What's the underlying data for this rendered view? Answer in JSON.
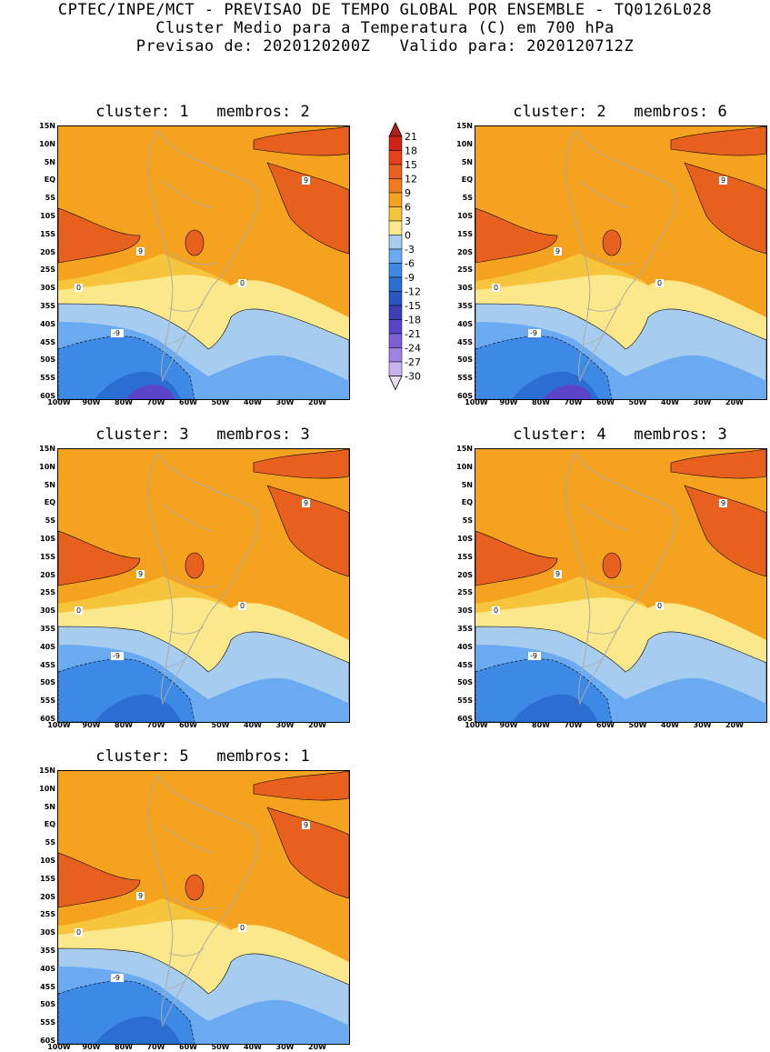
{
  "header": {
    "line1": "CPTEC/INPE/MCT - PREVISAO DE TEMPO GLOBAL POR ENSEMBLE - TQ0126L028",
    "line2": "Cluster Medio para a Temperatura (C) em 700 hPa",
    "line3": "Previsao de: 2020120200Z   Valido para: 2020120712Z"
  },
  "panels": [
    {
      "title": "cluster: 1   membros: 2"
    },
    {
      "title": "cluster: 2   membros: 6"
    },
    {
      "title": "cluster: 3   membros: 3"
    },
    {
      "title": "cluster: 4   membros: 3"
    },
    {
      "title": "cluster: 5   membros: 1"
    }
  ],
  "axes": {
    "lat_labels": [
      "15N",
      "10N",
      "5N",
      "EQ",
      "5S",
      "10S",
      "15S",
      "20S",
      "25S",
      "30S",
      "35S",
      "40S",
      "45S",
      "50S",
      "55S",
      "60S"
    ],
    "lon_labels": [
      "100W",
      "90W",
      "80W",
      "70W",
      "60W",
      "50W",
      "40W",
      "30W",
      "20W"
    ]
  },
  "colorbar": {
    "labels": [
      "21",
      "18",
      "15",
      "12",
      "9",
      "6",
      "3",
      "0",
      "-3",
      "-6",
      "-9",
      "-12",
      "-15",
      "-18",
      "-21",
      "-24",
      "-27",
      "-30"
    ],
    "colors": [
      "#b0201a",
      "#cc2418",
      "#e8411a",
      "#e8601e",
      "#f07a1e",
      "#f5a21e",
      "#f7c53c",
      "#fbe88a",
      "#a6cdf0",
      "#6aaaf0",
      "#3d8ae6",
      "#2a6ed2",
      "#2a57c4",
      "#3a3fb8",
      "#5a45c8",
      "#7d5fd8",
      "#a082e4",
      "#c8b2ee",
      "#e8dcf6"
    ],
    "icons": [
      "triangle-up-icon",
      "triangle-down-icon"
    ]
  },
  "contour_labels": {
    "warm": "9",
    "zero": "0",
    "cold": "-9"
  }
}
